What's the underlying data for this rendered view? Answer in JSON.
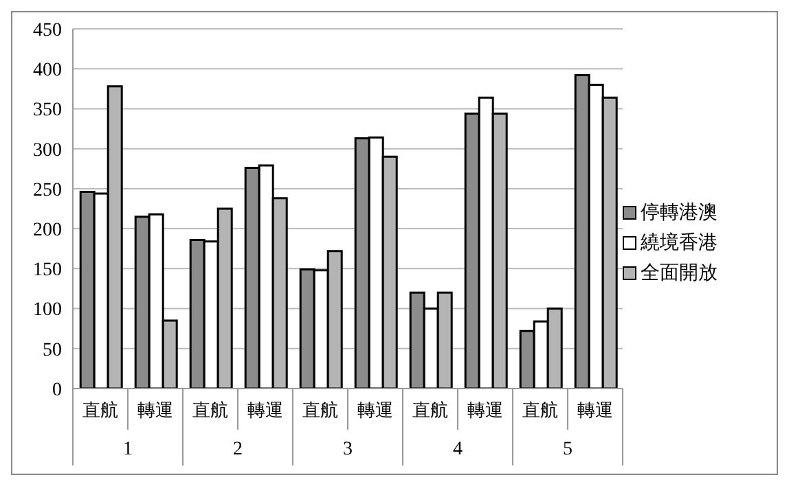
{
  "chart_data": {
    "type": "bar",
    "categories": [
      "直航",
      "轉運",
      "直航",
      "轉運",
      "直航",
      "轉運",
      "直航",
      "轉運",
      "直航",
      "轉運"
    ],
    "annotations": [
      "1",
      "2",
      "3",
      "4",
      "5"
    ],
    "series": [
      {
        "name": "停轉港澳",
        "color": "#8c8c8c",
        "values": [
          246,
          215,
          186,
          276,
          149,
          313,
          120,
          344,
          72,
          392
        ]
      },
      {
        "name": "繞境香港",
        "color": "#ffffff",
        "values": [
          244,
          218,
          184,
          279,
          148,
          314,
          100,
          364,
          84,
          380
        ]
      },
      {
        "name": "全面開放",
        "color": "#b4b4b4",
        "values": [
          378,
          85,
          225,
          238,
          172,
          290,
          120,
          344,
          100,
          364
        ]
      }
    ],
    "ylim": [
      0,
      450
    ],
    "yticks": [
      0,
      50,
      100,
      150,
      200,
      250,
      300,
      350,
      400,
      450
    ],
    "grid": "y",
    "legend": "right"
  }
}
